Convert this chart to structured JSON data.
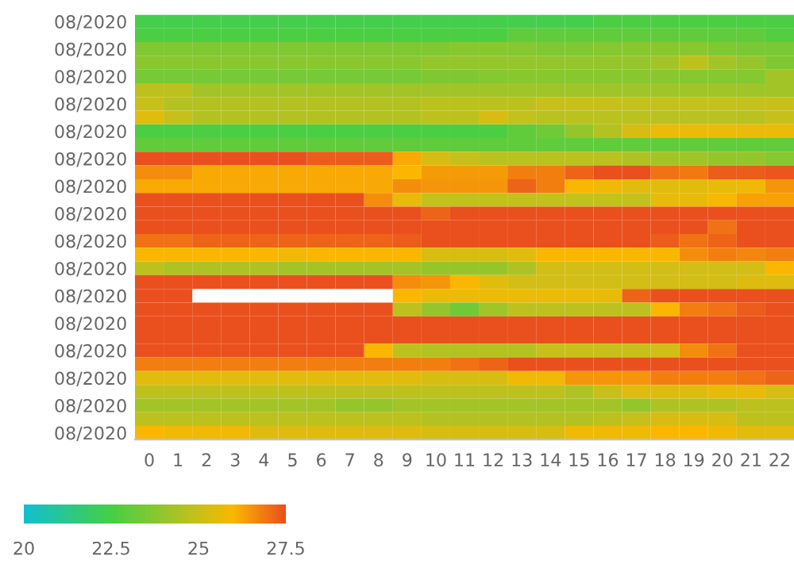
{
  "chart_data": {
    "type": "heatmap",
    "categories": [
      "0",
      "1",
      "2",
      "3",
      "4",
      "5",
      "6",
      "7",
      "8",
      "9",
      "10",
      "11",
      "12",
      "13",
      "14",
      "15",
      "16",
      "17",
      "18",
      "19",
      "20",
      "21",
      "22"
    ],
    "y_categories": [
      "08/2020",
      null,
      "08/2020",
      null,
      "08/2020",
      null,
      "08/2020",
      null,
      "08/2020",
      null,
      "08/2020",
      null,
      "08/2020",
      null,
      "08/2020",
      null,
      "08/2020",
      null,
      "08/2020",
      null,
      "08/2020",
      null,
      "08/2020",
      null,
      "08/2020",
      null,
      "08/2020",
      null,
      "08/2020",
      null,
      "08/2020"
    ],
    "cells": [
      [
        22.4,
        22.4,
        22.4,
        22.4,
        22.4,
        22.4,
        22.4,
        22.4,
        22.4,
        22.4,
        22.4,
        22.4,
        22.4,
        22.4,
        22.4,
        22.4,
        22.6,
        22.6,
        22.6,
        22.6,
        22.6,
        22.6,
        22.6
      ],
      [
        22.6,
        22.6,
        22.6,
        22.6,
        22.6,
        22.6,
        22.6,
        22.6,
        22.6,
        22.6,
        22.6,
        22.6,
        22.6,
        23.0,
        23.0,
        23.0,
        23.0,
        23.0,
        23.0,
        23.0,
        23.0,
        23.0,
        22.7
      ],
      [
        23.6,
        23.6,
        23.6,
        23.6,
        23.6,
        23.6,
        23.6,
        23.6,
        23.6,
        23.6,
        23.6,
        23.8,
        23.8,
        23.7,
        23.6,
        23.6,
        23.7,
        23.8,
        23.8,
        23.8,
        23.6,
        23.5,
        23.5
      ],
      [
        23.8,
        23.8,
        23.8,
        23.8,
        23.8,
        23.8,
        23.8,
        23.8,
        23.8,
        23.8,
        24.0,
        24.0,
        24.0,
        24.0,
        24.0,
        24.0,
        24.0,
        24.0,
        24.3,
        24.8,
        24.3,
        24.0,
        23.6
      ],
      [
        23.4,
        23.4,
        23.4,
        23.4,
        23.4,
        23.4,
        23.4,
        23.4,
        23.4,
        23.4,
        23.6,
        23.6,
        23.7,
        23.8,
        23.8,
        23.8,
        23.8,
        23.8,
        23.8,
        23.7,
        23.7,
        23.7,
        24.3
      ],
      [
        24.8,
        24.8,
        24.3,
        24.3,
        24.3,
        24.3,
        24.3,
        24.3,
        24.3,
        24.3,
        24.2,
        24.2,
        24.2,
        24.2,
        24.2,
        24.2,
        24.2,
        24.2,
        24.2,
        24.2,
        24.2,
        24.2,
        24.2
      ],
      [
        25.0,
        24.6,
        24.6,
        24.6,
        24.6,
        24.6,
        24.6,
        24.6,
        24.6,
        24.6,
        24.8,
        24.8,
        24.8,
        24.8,
        25.0,
        25.0,
        25.0,
        24.9,
        24.9,
        24.9,
        24.9,
        24.9,
        25.0
      ],
      [
        25.5,
        25.0,
        24.6,
        24.6,
        24.6,
        24.6,
        24.6,
        24.6,
        24.6,
        24.6,
        24.8,
        24.8,
        25.3,
        24.9,
        24.7,
        24.7,
        24.7,
        24.7,
        24.7,
        24.7,
        24.7,
        24.7,
        25.0
      ],
      [
        22.6,
        22.6,
        22.6,
        22.6,
        22.6,
        22.6,
        22.6,
        22.6,
        22.6,
        22.6,
        22.6,
        22.6,
        22.6,
        23.0,
        23.3,
        24.0,
        24.6,
        25.3,
        25.7,
        25.7,
        25.7,
        25.7,
        25.7
      ],
      [
        23.0,
        23.0,
        23.0,
        23.0,
        23.0,
        23.0,
        23.0,
        23.0,
        23.0,
        23.0,
        23.0,
        23.0,
        23.0,
        23.0,
        23.0,
        23.0,
        23.0,
        23.0,
        23.0,
        23.0,
        23.0,
        23.0,
        23.0
      ],
      [
        27.5,
        27.5,
        27.5,
        27.5,
        27.5,
        27.5,
        27.3,
        27.3,
        27.3,
        26.2,
        25.3,
        25.0,
        24.7,
        24.7,
        24.7,
        24.7,
        24.7,
        24.5,
        24.3,
        24.2,
        24.0,
        24.0,
        23.7
      ],
      [
        26.6,
        26.6,
        26.2,
        26.2,
        26.2,
        26.2,
        26.2,
        26.2,
        26.2,
        26.0,
        26.4,
        26.4,
        26.4,
        26.8,
        26.8,
        27.2,
        27.5,
        27.5,
        27.0,
        26.9,
        27.3,
        27.3,
        27.4
      ],
      [
        26.2,
        26.2,
        26.2,
        26.2,
        26.2,
        26.2,
        26.2,
        26.2,
        26.2,
        26.6,
        26.5,
        26.5,
        26.5,
        27.2,
        26.8,
        26.0,
        25.8,
        25.5,
        25.5,
        25.5,
        25.6,
        25.8,
        26.5
      ],
      [
        27.5,
        27.5,
        27.5,
        27.5,
        27.5,
        27.5,
        27.5,
        27.5,
        26.6,
        25.6,
        24.9,
        24.9,
        24.9,
        24.9,
        24.9,
        24.9,
        24.9,
        24.9,
        25.6,
        25.6,
        25.9,
        26.3,
        26.3
      ],
      [
        27.5,
        27.5,
        27.5,
        27.5,
        27.5,
        27.5,
        27.5,
        27.5,
        27.5,
        27.5,
        27.2,
        27.5,
        27.5,
        27.5,
        27.5,
        27.5,
        27.5,
        27.5,
        27.5,
        27.5,
        27.5,
        27.5,
        27.5
      ],
      [
        27.5,
        27.5,
        27.5,
        27.5,
        27.5,
        27.5,
        27.5,
        27.5,
        27.5,
        27.5,
        27.5,
        27.5,
        27.5,
        27.5,
        27.5,
        27.5,
        27.5,
        27.5,
        27.5,
        27.5,
        27.0,
        27.5,
        27.5
      ],
      [
        27.0,
        27.0,
        27.2,
        27.2,
        27.2,
        27.2,
        27.2,
        27.2,
        27.2,
        27.3,
        27.5,
        27.5,
        27.5,
        27.5,
        27.5,
        27.5,
        27.5,
        27.5,
        27.3,
        27.0,
        27.2,
        27.5,
        27.5
      ],
      [
        26.0,
        26.0,
        26.0,
        26.0,
        26.0,
        25.8,
        26.0,
        26.0,
        26.0,
        26.0,
        25.3,
        25.3,
        25.3,
        25.5,
        26.0,
        26.0,
        26.0,
        26.0,
        26.0,
        26.6,
        26.8,
        26.7,
        26.8
      ],
      [
        24.8,
        24.5,
        24.5,
        24.5,
        24.5,
        24.3,
        24.3,
        24.3,
        24.3,
        24.3,
        24.0,
        24.0,
        24.0,
        24.5,
        25.2,
        25.2,
        25.2,
        25.2,
        25.2,
        25.2,
        25.2,
        25.2,
        26.0
      ],
      [
        27.5,
        27.5,
        27.5,
        27.5,
        27.5,
        27.5,
        27.5,
        27.5,
        27.5,
        26.6,
        26.5,
        26.0,
        25.5,
        25.2,
        25.2,
        25.2,
        25.2,
        25.2,
        25.2,
        25.2,
        25.2,
        25.4,
        25.4
      ],
      [
        27.5,
        27.5,
        null,
        null,
        null,
        null,
        null,
        null,
        null,
        26.0,
        25.7,
        25.7,
        25.7,
        25.7,
        25.7,
        25.7,
        25.6,
        27.2,
        27.5,
        27.5,
        27.5,
        27.5,
        27.5
      ],
      [
        27.5,
        27.5,
        27.5,
        27.5,
        27.5,
        27.5,
        27.5,
        27.5,
        27.5,
        24.8,
        24.0,
        23.3,
        24.2,
        24.8,
        24.8,
        24.8,
        24.8,
        24.8,
        26.0,
        26.8,
        27.0,
        27.3,
        27.5
      ],
      [
        27.5,
        27.5,
        27.5,
        27.5,
        27.5,
        27.5,
        27.5,
        27.5,
        27.5,
        27.5,
        27.5,
        27.5,
        27.5,
        27.5,
        27.5,
        27.5,
        27.5,
        27.5,
        27.5,
        27.5,
        27.5,
        27.5,
        27.5
      ],
      [
        27.5,
        27.5,
        27.5,
        27.5,
        27.5,
        27.5,
        27.5,
        27.5,
        27.5,
        27.5,
        27.5,
        27.5,
        27.5,
        27.5,
        27.5,
        27.5,
        27.5,
        27.5,
        27.5,
        27.5,
        27.5,
        27.5,
        27.5
      ],
      [
        27.5,
        27.5,
        27.5,
        27.5,
        27.5,
        27.5,
        27.5,
        27.5,
        26.0,
        24.8,
        24.6,
        24.6,
        24.6,
        24.6,
        25.0,
        25.0,
        25.0,
        25.0,
        25.2,
        26.6,
        27.0,
        27.5,
        27.5
      ],
      [
        26.8,
        26.8,
        26.8,
        26.8,
        26.8,
        26.8,
        26.8,
        26.8,
        26.8,
        26.8,
        26.8,
        27.0,
        27.2,
        27.5,
        27.5,
        27.5,
        27.5,
        27.5,
        27.5,
        27.5,
        27.5,
        27.5,
        27.5
      ],
      [
        25.5,
        25.5,
        25.5,
        25.5,
        25.5,
        25.5,
        25.5,
        25.5,
        25.5,
        25.5,
        25.3,
        25.3,
        25.3,
        25.8,
        25.8,
        26.5,
        26.5,
        26.5,
        26.8,
        26.8,
        26.8,
        27.0,
        27.2
      ],
      [
        24.8,
        24.8,
        24.8,
        24.8,
        24.8,
        24.8,
        24.8,
        24.8,
        24.8,
        24.8,
        24.8,
        24.8,
        24.8,
        24.8,
        24.8,
        24.5,
        25.0,
        25.4,
        25.4,
        25.4,
        25.6,
        25.6,
        25.3
      ],
      [
        24.3,
        24.3,
        24.3,
        24.3,
        24.3,
        24.3,
        24.3,
        24.0,
        24.0,
        24.3,
        24.3,
        24.3,
        24.3,
        24.3,
        24.3,
        24.3,
        24.3,
        24.0,
        24.5,
        24.5,
        24.5,
        24.8,
        24.8
      ],
      [
        24.8,
        24.8,
        24.8,
        24.8,
        24.8,
        24.8,
        24.8,
        24.8,
        24.8,
        24.8,
        24.6,
        24.6,
        24.6,
        24.6,
        24.6,
        24.6,
        24.8,
        25.0,
        25.3,
        25.3,
        25.3,
        24.8,
        24.8
      ],
      [
        26.0,
        25.8,
        25.8,
        25.8,
        25.4,
        25.4,
        25.4,
        25.4,
        25.4,
        25.4,
        25.3,
        25.3,
        25.3,
        25.3,
        25.3,
        25.8,
        25.8,
        25.8,
        26.0,
        26.0,
        25.8,
        25.5,
        25.5
      ]
    ],
    "clim": [
      20,
      27.5
    ],
    "cticks": [
      20,
      22.5,
      25,
      27.5
    ]
  }
}
